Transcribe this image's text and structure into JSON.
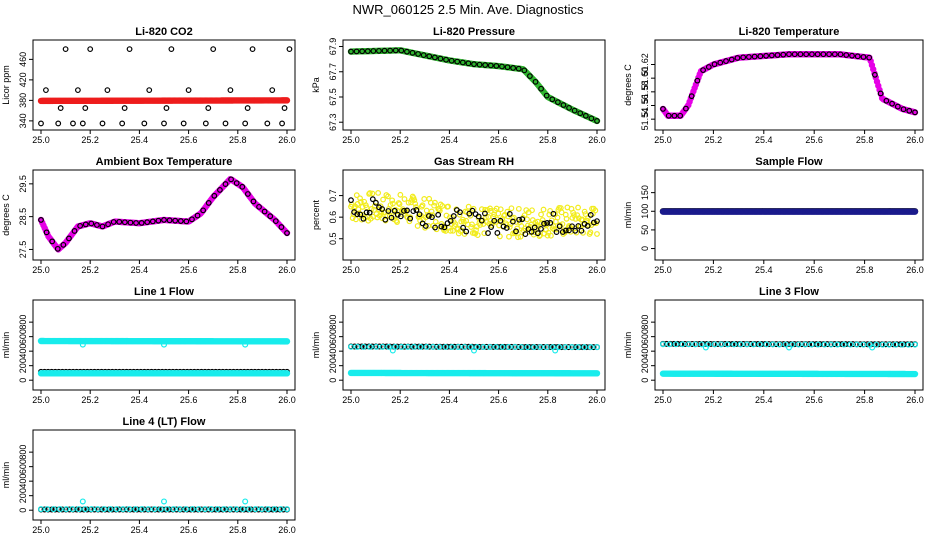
{
  "page": {
    "title": "NWR_060125  2.5 Min. Ave. Diagnostics"
  },
  "colors": {
    "black": "#000000",
    "red": "#ee1c1c",
    "green": "#2fb52f",
    "magenta": "#e600e6",
    "yellow": "#f2ec1d",
    "navy": "#1a1a8c",
    "cyan": "#18ecec"
  },
  "chart_data": [
    {
      "type": "scatter",
      "title": "Li-820 CO2",
      "xlabel": "",
      "ylabel": "Licor ppm",
      "xlim": [
        25.0,
        26.0
      ],
      "ylim": [
        330,
        490
      ],
      "xticks": [
        "25.0",
        "25.2",
        "25.4",
        "25.6",
        "25.8",
        "26.0"
      ],
      "yticks": [
        "340",
        "380",
        "420",
        "460"
      ],
      "series": [
        {
          "name": "spikes-black",
          "color": "black",
          "style": "open",
          "pattern": "spikes",
          "levels": [
            335,
            365,
            400,
            480
          ]
        },
        {
          "name": "co2-red",
          "color": "red",
          "style": "dense",
          "pattern": "flat",
          "points": [
            [
              25.0,
              379
            ],
            [
              26.0,
              380
            ]
          ]
        }
      ]
    },
    {
      "type": "scatter",
      "title": "Li-820 Pressure",
      "xlabel": "",
      "ylabel": "kPa",
      "xlim": [
        25.0,
        26.0
      ],
      "ylim": [
        67.27,
        67.92
      ],
      "xticks": [
        "25.0",
        "25.2",
        "25.4",
        "25.6",
        "25.8",
        "26.0"
      ],
      "yticks": [
        "67.3",
        "67.5",
        "67.7",
        "67.9"
      ],
      "series": [
        {
          "name": "pressure-green",
          "color": "green",
          "style": "dense",
          "points": [
            [
              25.0,
              67.86
            ],
            [
              25.1,
              67.865
            ],
            [
              25.2,
              67.87
            ],
            [
              25.3,
              67.83
            ],
            [
              25.4,
              67.79
            ],
            [
              25.5,
              67.76
            ],
            [
              25.6,
              67.745
            ],
            [
              25.7,
              67.72
            ],
            [
              25.75,
              67.62
            ],
            [
              25.8,
              67.5
            ],
            [
              25.9,
              67.4
            ],
            [
              26.0,
              67.31
            ]
          ]
        },
        {
          "name": "pressure-black",
          "color": "black",
          "style": "open-sparse",
          "points": [
            [
              25.0,
              67.86
            ],
            [
              25.1,
              67.865
            ],
            [
              25.2,
              67.87
            ],
            [
              25.3,
              67.83
            ],
            [
              25.4,
              67.79
            ],
            [
              25.5,
              67.76
            ],
            [
              25.6,
              67.745
            ],
            [
              25.7,
              67.72
            ],
            [
              25.75,
              67.62
            ],
            [
              25.8,
              67.5
            ],
            [
              25.9,
              67.4
            ],
            [
              26.0,
              67.31
            ]
          ]
        }
      ]
    },
    {
      "type": "scatter",
      "title": "Li-820 Temperature",
      "xlabel": "",
      "ylabel": "degrees C",
      "xlim": [
        25.0,
        26.0
      ],
      "ylim": [
        51.53,
        51.65
      ],
      "xticks": [
        "25.0",
        "25.2",
        "25.4",
        "25.6",
        "25.8",
        "26.0"
      ],
      "yticks": [
        "51.54",
        "51.56",
        "51.58",
        "51.60",
        "51.62"
      ],
      "series": [
        {
          "name": "temp-magenta",
          "color": "magenta",
          "style": "dense",
          "points": [
            [
              25.0,
              51.555
            ],
            [
              25.02,
              51.545
            ],
            [
              25.07,
              51.545
            ],
            [
              25.1,
              51.56
            ],
            [
              25.15,
              51.61
            ],
            [
              25.2,
              51.62
            ],
            [
              25.3,
              51.63
            ],
            [
              25.5,
              51.635
            ],
            [
              25.7,
              51.635
            ],
            [
              25.82,
              51.63
            ],
            [
              25.87,
              51.57
            ],
            [
              25.95,
              51.555
            ],
            [
              26.0,
              51.55
            ]
          ]
        },
        {
          "name": "temp-black",
          "color": "black",
          "style": "open-sparse",
          "points": [
            [
              25.0,
              51.555
            ],
            [
              25.02,
              51.545
            ],
            [
              25.07,
              51.545
            ],
            [
              25.1,
              51.56
            ],
            [
              25.15,
              51.61
            ],
            [
              25.2,
              51.62
            ],
            [
              25.3,
              51.63
            ],
            [
              25.5,
              51.635
            ],
            [
              25.7,
              51.635
            ],
            [
              25.82,
              51.63
            ],
            [
              25.87,
              51.57
            ],
            [
              25.95,
              51.555
            ],
            [
              26.0,
              51.55
            ]
          ]
        }
      ]
    },
    {
      "type": "scatter",
      "title": "Ambient Box Temperature",
      "xlabel": "",
      "ylabel": "degrees C",
      "xlim": [
        25.0,
        26.0
      ],
      "ylim": [
        27.3,
        29.8
      ],
      "xticks": [
        "25.0",
        "25.2",
        "25.4",
        "25.6",
        "25.8",
        "26.0"
      ],
      "yticks": [
        "27.5",
        "28.5",
        "29.5"
      ],
      "series": [
        {
          "name": "box-magenta",
          "color": "magenta",
          "style": "dense",
          "points": [
            [
              25.0,
              28.4
            ],
            [
              25.03,
              27.9
            ],
            [
              25.07,
              27.5
            ],
            [
              25.1,
              27.7
            ],
            [
              25.15,
              28.2
            ],
            [
              25.2,
              28.3
            ],
            [
              25.25,
              28.2
            ],
            [
              25.3,
              28.35
            ],
            [
              25.4,
              28.3
            ],
            [
              25.5,
              28.4
            ],
            [
              25.6,
              28.35
            ],
            [
              25.65,
              28.6
            ],
            [
              25.7,
              29.1
            ],
            [
              25.77,
              29.65
            ],
            [
              25.82,
              29.4
            ],
            [
              25.87,
              28.9
            ],
            [
              25.95,
              28.4
            ],
            [
              26.0,
              28.0
            ]
          ]
        },
        {
          "name": "box-black",
          "color": "black",
          "style": "open-sparse",
          "points": [
            [
              25.0,
              28.4
            ],
            [
              25.03,
              27.9
            ],
            [
              25.07,
              27.5
            ],
            [
              25.1,
              27.7
            ],
            [
              25.15,
              28.2
            ],
            [
              25.2,
              28.3
            ],
            [
              25.25,
              28.2
            ],
            [
              25.3,
              28.35
            ],
            [
              25.4,
              28.3
            ],
            [
              25.5,
              28.4
            ],
            [
              25.6,
              28.35
            ],
            [
              25.65,
              28.6
            ],
            [
              25.7,
              29.1
            ],
            [
              25.77,
              29.65
            ],
            [
              25.82,
              29.4
            ],
            [
              25.87,
              28.9
            ],
            [
              25.95,
              28.4
            ],
            [
              26.0,
              28.0
            ]
          ]
        }
      ]
    },
    {
      "type": "scatter",
      "title": "Gas Stream RH",
      "xlabel": "",
      "ylabel": "percent",
      "xlim": [
        25.0,
        26.0
      ],
      "ylim": [
        0.42,
        0.8
      ],
      "xticks": [
        "25.0",
        "25.2",
        "25.4",
        "25.6",
        "25.8",
        "26.0"
      ],
      "yticks": [
        "0.5",
        "0.6",
        "0.7"
      ],
      "series": [
        {
          "name": "rh-yellow",
          "color": "yellow",
          "style": "noisy",
          "points": [
            [
              25.0,
              0.65
            ],
            [
              25.2,
              0.64
            ],
            [
              25.4,
              0.6
            ],
            [
              25.6,
              0.57
            ],
            [
              25.8,
              0.58
            ],
            [
              26.0,
              0.58
            ]
          ],
          "spread": 0.07
        },
        {
          "name": "rh-black",
          "color": "black",
          "style": "noisy-sparse",
          "points": [
            [
              25.0,
              0.64
            ],
            [
              25.2,
              0.63
            ],
            [
              25.4,
              0.59
            ],
            [
              25.6,
              0.57
            ],
            [
              25.8,
              0.57
            ],
            [
              26.0,
              0.58
            ]
          ],
          "spread": 0.05
        }
      ]
    },
    {
      "type": "scatter",
      "title": "Sample Flow",
      "xlabel": "",
      "ylabel": "ml/min",
      "xlim": [
        25.0,
        26.0
      ],
      "ylim": [
        -20,
        200
      ],
      "xticks": [
        "25.0",
        "25.2",
        "25.4",
        "25.6",
        "25.8",
        "26.0"
      ],
      "yticks": [
        "0",
        "50",
        "100",
        "150"
      ],
      "series": [
        {
          "name": "sample-black",
          "color": "black",
          "style": "dense",
          "points": [
            [
              25.0,
              100
            ],
            [
              26.0,
              100
            ]
          ]
        },
        {
          "name": "sample-navy",
          "color": "navy",
          "style": "dense",
          "points": [
            [
              25.0,
              99
            ],
            [
              26.0,
              99
            ]
          ]
        }
      ]
    },
    {
      "type": "scatter",
      "title": "Line 1 Flow",
      "xlabel": "",
      "ylabel": "ml/min",
      "xlim": [
        25.0,
        26.0
      ],
      "ylim": [
        -80,
        1050
      ],
      "xticks": [
        "25.0",
        "25.2",
        "25.4",
        "25.6",
        "25.8",
        "26.0"
      ],
      "yticks": [
        "0",
        "200",
        "400",
        "600",
        "800"
      ],
      "series": [
        {
          "name": "line1-cyan",
          "color": "cyan",
          "style": "dense",
          "points": [
            [
              25.0,
              540
            ],
            [
              26.0,
              535
            ]
          ],
          "dips": [
            [
              25.17,
              490
            ],
            [
              25.5,
              490
            ],
            [
              25.83,
              490
            ]
          ]
        },
        {
          "name": "line1-black",
          "color": "black",
          "style": "open-dense",
          "points": [
            [
              25.0,
              115
            ],
            [
              26.0,
              115
            ]
          ]
        },
        {
          "name": "line1-cyan-low",
          "color": "cyan",
          "style": "dense",
          "points": [
            [
              25.0,
              95
            ],
            [
              26.0,
              95
            ]
          ]
        }
      ]
    },
    {
      "type": "scatter",
      "title": "Line 2 Flow",
      "xlabel": "",
      "ylabel": "ml/min",
      "xlim": [
        25.0,
        26.0
      ],
      "ylim": [
        -80,
        1050
      ],
      "xticks": [
        "25.0",
        "25.2",
        "25.4",
        "25.6",
        "25.8",
        "26.0"
      ],
      "yticks": [
        "0",
        "200",
        "400",
        "600",
        "800"
      ],
      "series": [
        {
          "name": "line2-black",
          "color": "black",
          "style": "open-dense",
          "points": [
            [
              25.0,
              465
            ],
            [
              26.0,
              455
            ]
          ]
        },
        {
          "name": "line2-cyan",
          "color": "cyan",
          "style": "sparse",
          "points": [
            [
              25.0,
              460
            ],
            [
              26.0,
              455
            ]
          ],
          "dips": [
            [
              25.17,
              410
            ],
            [
              25.5,
              410
            ],
            [
              25.83,
              410
            ]
          ]
        },
        {
          "name": "line2-cyan-low",
          "color": "cyan",
          "style": "dense",
          "points": [
            [
              25.0,
              100
            ],
            [
              26.0,
              95
            ]
          ]
        }
      ]
    },
    {
      "type": "scatter",
      "title": "Line 3 Flow",
      "xlabel": "",
      "ylabel": "ml/min",
      "xlim": [
        25.0,
        26.0
      ],
      "ylim": [
        -80,
        1050
      ],
      "xticks": [
        "25.0",
        "25.2",
        "25.4",
        "25.6",
        "25.8",
        "26.0"
      ],
      "yticks": [
        "0",
        "200",
        "400",
        "600",
        "800"
      ],
      "series": [
        {
          "name": "line3-black",
          "color": "black",
          "style": "open-dense",
          "points": [
            [
              25.0,
              500
            ],
            [
              26.0,
              495
            ]
          ]
        },
        {
          "name": "line3-cyan",
          "color": "cyan",
          "style": "sparse",
          "points": [
            [
              25.0,
              495
            ],
            [
              26.0,
              490
            ]
          ],
          "dips": [
            [
              25.17,
              450
            ],
            [
              25.5,
              450
            ],
            [
              25.83,
              450
            ]
          ]
        },
        {
          "name": "line3-cyan-low",
          "color": "cyan",
          "style": "dense",
          "points": [
            [
              25.0,
              90
            ],
            [
              26.0,
              85
            ]
          ]
        }
      ]
    },
    {
      "type": "scatter",
      "title": "Line 4 (LT) Flow",
      "xlabel": "",
      "ylabel": "ml/min",
      "xlim": [
        25.0,
        26.0
      ],
      "ylim": [
        -80,
        1050
      ],
      "xticks": [
        "25.0",
        "25.2",
        "25.4",
        "25.6",
        "25.8",
        "26.0"
      ],
      "yticks": [
        "0",
        "200",
        "400",
        "600",
        "800"
      ],
      "series": [
        {
          "name": "line4-black",
          "color": "black",
          "style": "open-dense",
          "points": [
            [
              25.0,
              10
            ],
            [
              26.0,
              10
            ]
          ]
        },
        {
          "name": "line4-cyan",
          "color": "cyan",
          "style": "sparse",
          "points": [
            [
              25.0,
              15
            ],
            [
              26.0,
              15
            ]
          ],
          "spikes": [
            [
              25.17,
              120
            ],
            [
              25.5,
              120
            ],
            [
              25.83,
              120
            ]
          ]
        }
      ]
    }
  ]
}
